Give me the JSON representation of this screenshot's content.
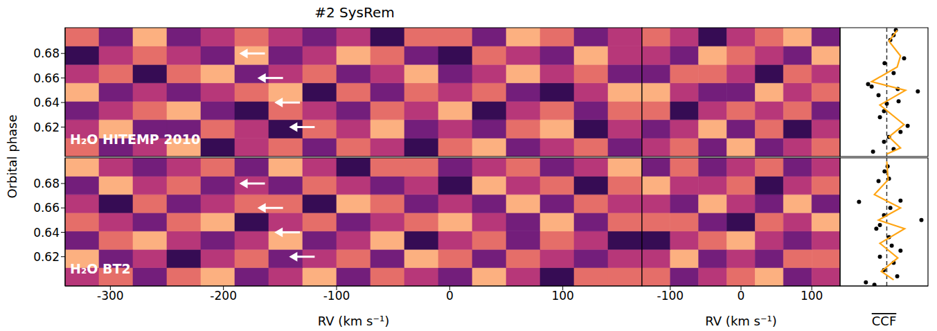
{
  "chart_data": {
    "type": "heatmap",
    "title": "#2 SysRem",
    "y_label": "Orbital phase",
    "ylim": [
      0.596,
      0.701
    ],
    "yticks": [
      0.62,
      0.64,
      0.66,
      0.68
    ],
    "color_range": [
      -3,
      3
    ],
    "phase_edges": [
      0.596,
      0.611,
      0.626,
      0.641,
      0.656,
      0.671,
      0.686,
      0.701
    ],
    "panels": {
      "left": {
        "x_label": "RV (km s⁻¹)",
        "xlim": [
          -340,
          170
        ],
        "xticks": [
          -300,
          -200,
          -100,
          0,
          100
        ],
        "rv_edges": [
          -340,
          -310,
          -280,
          -250,
          -220,
          -190,
          -160,
          -130,
          -100,
          -70,
          -40,
          -10,
          20,
          50,
          80,
          110,
          140,
          170
        ]
      },
      "right": {
        "x_label": "RV (km s⁻¹)",
        "xlim": [
          -140,
          140
        ],
        "xticks": [
          -100,
          0,
          100
        ],
        "rv_edges": [
          -140,
          -100,
          -60,
          -20,
          20,
          60,
          100,
          140
        ]
      },
      "ccf": {
        "x_label": "CCF",
        "xlim": [
          -1.7,
          1.5
        ],
        "mean": 0,
        "line_style": "dashed",
        "tick_labels": false
      }
    },
    "rows": [
      {
        "label": "H₂O HITEMP 2010",
        "arrows": [
          {
            "rv": -186,
            "phase": 0.68
          },
          {
            "rv": -170,
            "phase": 0.66
          },
          {
            "rv": -155,
            "phase": 0.64
          },
          {
            "rv": -142,
            "phase": 0.62
          }
        ],
        "cells": [
          [
            1,
            -1,
            0,
            2,
            -2,
            0,
            1,
            -1,
            1,
            0,
            -2,
            1,
            2,
            -1,
            0,
            1,
            -1
          ],
          [
            0,
            2,
            -1,
            -1,
            1,
            0,
            -2,
            1,
            0,
            2,
            -1,
            0,
            -1,
            1,
            2,
            -2,
            0
          ],
          [
            -1,
            0,
            1,
            2,
            -1,
            -2,
            1,
            0,
            -1,
            1,
            0,
            2,
            -2,
            0,
            1,
            -1,
            1
          ],
          [
            2,
            -1,
            0,
            -1,
            0,
            1,
            2,
            -2,
            1,
            -1,
            1,
            0,
            1,
            -1,
            -2,
            0,
            2
          ],
          [
            0,
            1,
            -2,
            1,
            2,
            -1,
            0,
            1,
            -1,
            0,
            2,
            -1,
            0,
            2,
            0,
            1,
            -1
          ],
          [
            -2,
            0,
            1,
            0,
            -1,
            2,
            -1,
            0,
            2,
            1,
            -1,
            -2,
            1,
            0,
            -1,
            2,
            0
          ],
          [
            1,
            -1,
            2,
            -1,
            0,
            1,
            0,
            -1,
            0,
            -2,
            1,
            1,
            -1,
            2,
            1,
            -1,
            0
          ]
        ],
        "cells_right": [
          [
            0,
            1,
            -1,
            2,
            -1,
            0,
            1
          ],
          [
            -1,
            0,
            2,
            -1,
            1,
            -2,
            0
          ],
          [
            1,
            -2,
            0,
            1,
            0,
            1,
            -1
          ],
          [
            2,
            0,
            -1,
            -1,
            2,
            0,
            1
          ],
          [
            -1,
            1,
            1,
            0,
            -2,
            1,
            0
          ],
          [
            0,
            -1,
            2,
            1,
            0,
            -1,
            2
          ],
          [
            1,
            0,
            -2,
            0,
            1,
            2,
            -1
          ]
        ],
        "ccf": {
          "type": "scatter",
          "color": "#000000",
          "phase": [
            0.699,
            0.695,
            0.691,
            0.676,
            0.672,
            0.664,
            0.655,
            0.653,
            0.651,
            0.649,
            0.646,
            0.641,
            0.639,
            0.633,
            0.628,
            0.621,
            0.616,
            0.612,
            0.608,
            0.602,
            0.6
          ],
          "values": [
            0.33,
            0.25,
            0.13,
            0.63,
            -0.08,
            0.25,
            -0.68,
            -0.55,
            0.4,
            1.13,
            -0.3,
            0.43,
            0.0,
            -0.1,
            -0.25,
            0.76,
            0.5,
            0.08,
            -0.1,
            0.25,
            -0.5
          ]
        },
        "ccf_binned": {
          "type": "line",
          "color": "#ffa514",
          "phase": [
            0.699,
            0.69,
            0.678,
            0.669,
            0.657,
            0.65,
            0.638,
            0.622,
            0.612,
            0.603,
            0.598
          ],
          "values": [
            0.38,
            0.08,
            0.5,
            0.38,
            -0.55,
            0.68,
            -0.25,
            0.63,
            0.08,
            0.5,
            0.0
          ]
        }
      },
      {
        "label": "H₂O BT2",
        "arrows": [
          {
            "rv": -186,
            "phase": 0.68
          },
          {
            "rv": -170,
            "phase": 0.66
          },
          {
            "rv": -155,
            "phase": 0.64
          },
          {
            "rv": -142,
            "phase": 0.62
          }
        ],
        "cells": [
          [
            0,
            1,
            -1,
            1,
            2,
            -1,
            0,
            2,
            -1,
            1,
            0,
            -1,
            2,
            0,
            -2,
            1,
            1
          ],
          [
            2,
            -1,
            0,
            -2,
            0,
            1,
            -1,
            0,
            1,
            -1,
            2,
            1,
            -1,
            1,
            0,
            -1,
            0
          ],
          [
            -1,
            1,
            2,
            0,
            -1,
            0,
            2,
            -1,
            0,
            2,
            -2,
            0,
            1,
            -1,
            1,
            0,
            -2
          ],
          [
            1,
            0,
            -1,
            1,
            2,
            -2,
            0,
            1,
            -1,
            0,
            1,
            2,
            0,
            -1,
            2,
            -1,
            1
          ],
          [
            0,
            -2,
            1,
            -1,
            0,
            1,
            1,
            -2,
            2,
            1,
            -1,
            0,
            -1,
            2,
            -1,
            1,
            0
          ],
          [
            -1,
            2,
            0,
            1,
            -1,
            0,
            -1,
            1,
            0,
            -1,
            0,
            -2,
            2,
            0,
            1,
            -2,
            1
          ],
          [
            2,
            0,
            -1,
            0,
            1,
            -1,
            2,
            0,
            -2,
            1,
            1,
            -1,
            0,
            1,
            -1,
            0,
            2
          ]
        ],
        "cells_right": [
          [
            1,
            -1,
            0,
            1,
            2,
            -1,
            0
          ],
          [
            0,
            2,
            -1,
            0,
            -1,
            1,
            1
          ],
          [
            -2,
            0,
            1,
            2,
            0,
            -1,
            0
          ],
          [
            1,
            1,
            -1,
            -2,
            1,
            0,
            2
          ],
          [
            0,
            -1,
            2,
            0,
            -1,
            2,
            -1
          ],
          [
            2,
            0,
            0,
            1,
            -2,
            0,
            1
          ],
          [
            -1,
            1,
            -1,
            0,
            1,
            -1,
            0
          ]
        ],
        "ccf": {
          "type": "scatter",
          "color": "#000000",
          "phase": [
            0.694,
            0.69,
            0.684,
            0.682,
            0.666,
            0.665,
            0.66,
            0.654,
            0.65,
            0.646,
            0.643,
            0.636,
            0.629,
            0.625,
            0.62,
            0.615,
            0.609,
            0.604,
            0.599,
            0.597
          ],
          "values": [
            0.03,
            -0.08,
            0.08,
            -0.3,
            0.5,
            -1.01,
            0.13,
            -0.1,
            1.26,
            -0.25,
            -0.38,
            0.08,
            0.18,
            0.5,
            -0.25,
            0.25,
            -0.1,
            0.38,
            -0.76,
            -0.45
          ]
        },
        "ccf_binned": {
          "type": "line",
          "color": "#ffa514",
          "phase": [
            0.698,
            0.683,
            0.671,
            0.66,
            0.65,
            0.643,
            0.631,
            0.619,
            0.608,
            0.601
          ],
          "values": [
            0.0,
            0.05,
            -0.45,
            0.5,
            -0.3,
            0.65,
            -0.25,
            0.4,
            -0.2,
            0.25
          ]
        }
      }
    ]
  }
}
